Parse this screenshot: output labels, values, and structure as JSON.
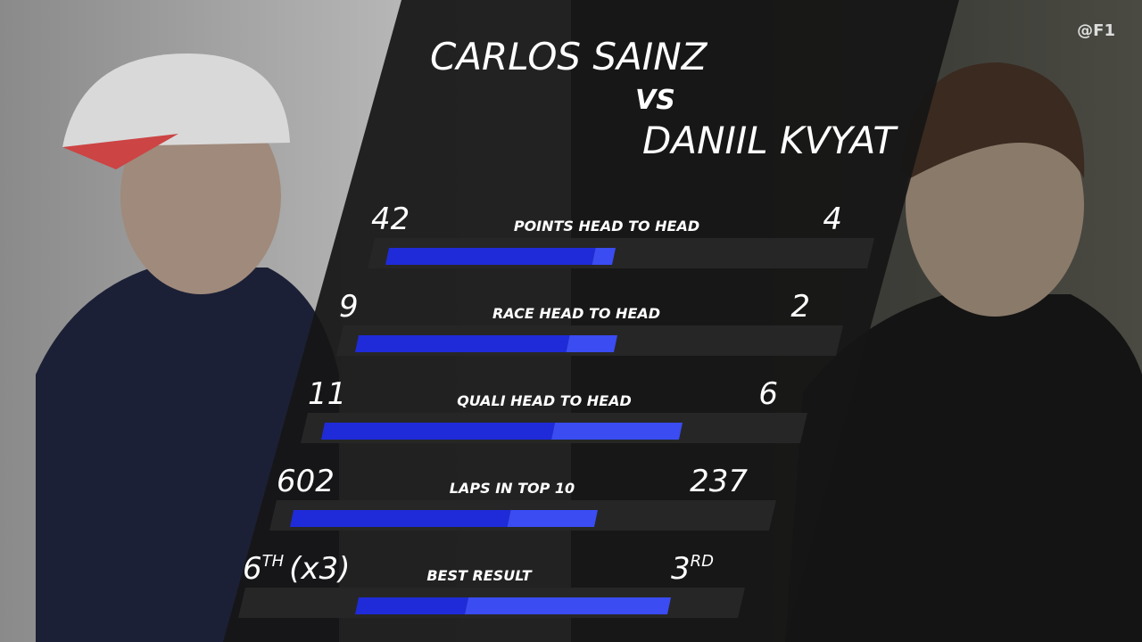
{
  "header": {
    "handle": "@F1",
    "driver_left": "CARLOS SAINZ",
    "versus": "VS",
    "driver_right": "DANIIL KVYAT"
  },
  "stats": [
    {
      "label": "POINTS HEAD TO HEAD",
      "left": 42,
      "right": 4
    },
    {
      "label": "RACE HEAD TO HEAD",
      "left": 9,
      "right": 2
    },
    {
      "label": "QUALI HEAD TO HEAD",
      "left": 11,
      "right": 6
    },
    {
      "label": "LAPS IN TOP 10",
      "left": 602,
      "right": 237
    }
  ],
  "best_result": {
    "label": "BEST RESULT",
    "left": "6",
    "left_sup": "TH",
    "left_suffix": "(x3)",
    "right": "3",
    "right_sup": "RD"
  }
}
